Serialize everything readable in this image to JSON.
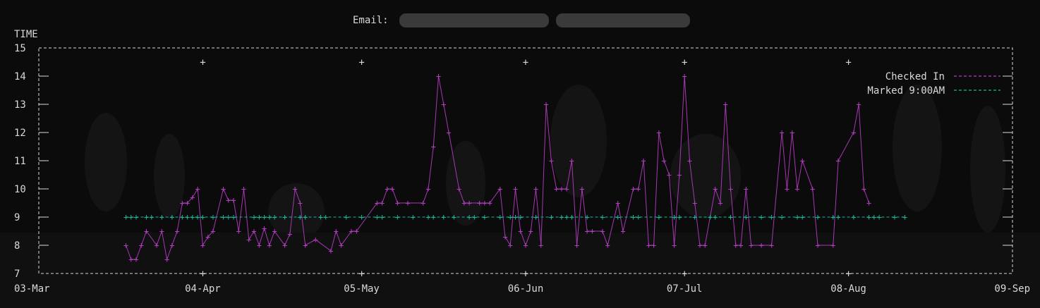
{
  "header": {
    "email_label": "Email:"
  },
  "chart_data": {
    "type": "scatter",
    "ylabel": "TIME",
    "ylim": [
      7,
      15
    ],
    "yticks": [
      7,
      8,
      9,
      10,
      11,
      12,
      13,
      14,
      15
    ],
    "ytick_labels": [
      "7",
      "8",
      "9",
      "10",
      "11",
      "12",
      "13",
      "14",
      "15"
    ],
    "xlim": [
      "2024-03-03",
      "2024-09-09"
    ],
    "xticks": [
      "2024-03-03",
      "2024-04-04",
      "2024-05-05",
      "2024-06-06",
      "2024-07-07",
      "2024-08-08",
      "2024-09-09"
    ],
    "xtick_labels": [
      "03-Mar",
      "04-Apr",
      "05-May",
      "06-Jun",
      "07-Jul",
      "08-Aug",
      "09-Sep"
    ],
    "grid": false,
    "legend": {
      "position": "top-right"
    },
    "colors": {
      "checked_in": "#b83cc8",
      "marked": "#14b89a",
      "axis": "#d9d9d9",
      "background": "#0b0b0b"
    },
    "series": [
      {
        "name": "Checked In",
        "color": "#b83cc8",
        "points": [
          [
            "2024-03-20",
            8.0
          ],
          [
            "2024-03-21",
            7.5
          ],
          [
            "2024-03-22",
            7.5
          ],
          [
            "2024-03-23",
            8.0
          ],
          [
            "2024-03-24",
            8.5
          ],
          [
            "2024-03-26",
            8.0
          ],
          [
            "2024-03-27",
            8.5
          ],
          [
            "2024-03-28",
            7.5
          ],
          [
            "2024-03-29",
            8.0
          ],
          [
            "2024-03-30",
            8.5
          ],
          [
            "2024-03-31",
            9.5
          ],
          [
            "2024-04-01",
            9.5
          ],
          [
            "2024-04-02",
            9.7
          ],
          [
            "2024-04-03",
            10.0
          ],
          [
            "2024-04-04",
            8.0
          ],
          [
            "2024-04-05",
            8.3
          ],
          [
            "2024-04-06",
            8.5
          ],
          [
            "2024-04-08",
            10.0
          ],
          [
            "2024-04-09",
            9.6
          ],
          [
            "2024-04-10",
            9.6
          ],
          [
            "2024-04-11",
            8.5
          ],
          [
            "2024-04-12",
            10.0
          ],
          [
            "2024-04-13",
            8.2
          ],
          [
            "2024-04-14",
            8.5
          ],
          [
            "2024-04-15",
            8.0
          ],
          [
            "2024-04-16",
            8.6
          ],
          [
            "2024-04-17",
            8.0
          ],
          [
            "2024-04-18",
            8.5
          ],
          [
            "2024-04-20",
            8.0
          ],
          [
            "2024-04-21",
            8.4
          ],
          [
            "2024-04-22",
            10.0
          ],
          [
            "2024-04-23",
            9.5
          ],
          [
            "2024-04-24",
            8.0
          ],
          [
            "2024-04-26",
            8.2
          ],
          [
            "2024-04-29",
            7.8
          ],
          [
            "2024-04-30",
            8.5
          ],
          [
            "2024-05-01",
            8.0
          ],
          [
            "2024-05-03",
            8.5
          ],
          [
            "2024-05-04",
            8.5
          ],
          [
            "2024-05-08",
            9.5
          ],
          [
            "2024-05-09",
            9.5
          ],
          [
            "2024-05-10",
            10.0
          ],
          [
            "2024-05-11",
            10.0
          ],
          [
            "2024-05-12",
            9.5
          ],
          [
            "2024-05-14",
            9.5
          ],
          [
            "2024-05-17",
            9.5
          ],
          [
            "2024-05-18",
            10.0
          ],
          [
            "2024-05-19",
            11.5
          ],
          [
            "2024-05-20",
            14.0
          ],
          [
            "2024-05-21",
            13.0
          ],
          [
            "2024-05-22",
            12.0
          ],
          [
            "2024-05-24",
            10.0
          ],
          [
            "2024-05-25",
            9.5
          ],
          [
            "2024-05-26",
            9.5
          ],
          [
            "2024-05-28",
            9.5
          ],
          [
            "2024-05-29",
            9.5
          ],
          [
            "2024-05-30",
            9.5
          ],
          [
            "2024-06-01",
            10.0
          ],
          [
            "2024-06-02",
            8.3
          ],
          [
            "2024-06-03",
            8.0
          ],
          [
            "2024-06-04",
            10.0
          ],
          [
            "2024-06-05",
            8.5
          ],
          [
            "2024-06-06",
            8.0
          ],
          [
            "2024-06-07",
            8.5
          ],
          [
            "2024-06-08",
            10.0
          ],
          [
            "2024-06-09",
            8.0
          ],
          [
            "2024-06-10",
            13.0
          ],
          [
            "2024-06-11",
            11.0
          ],
          [
            "2024-06-12",
            10.0
          ],
          [
            "2024-06-13",
            10.0
          ],
          [
            "2024-06-14",
            10.0
          ],
          [
            "2024-06-15",
            11.0
          ],
          [
            "2024-06-16",
            8.0
          ],
          [
            "2024-06-17",
            10.0
          ],
          [
            "2024-06-18",
            8.5
          ],
          [
            "2024-06-19",
            8.5
          ],
          [
            "2024-06-21",
            8.5
          ],
          [
            "2024-06-22",
            8.0
          ],
          [
            "2024-06-24",
            9.5
          ],
          [
            "2024-06-25",
            8.5
          ],
          [
            "2024-06-27",
            10.0
          ],
          [
            "2024-06-28",
            10.0
          ],
          [
            "2024-06-29",
            11.0
          ],
          [
            "2024-06-30",
            8.0
          ],
          [
            "2024-07-01",
            8.0
          ],
          [
            "2024-07-02",
            12.0
          ],
          [
            "2024-07-03",
            11.0
          ],
          [
            "2024-07-04",
            10.5
          ],
          [
            "2024-07-05",
            8.0
          ],
          [
            "2024-07-06",
            10.5
          ],
          [
            "2024-07-07",
            14.0
          ],
          [
            "2024-07-08",
            11.0
          ],
          [
            "2024-07-09",
            9.5
          ],
          [
            "2024-07-10",
            8.0
          ],
          [
            "2024-07-11",
            8.0
          ],
          [
            "2024-07-13",
            10.0
          ],
          [
            "2024-07-14",
            9.5
          ],
          [
            "2024-07-15",
            13.0
          ],
          [
            "2024-07-16",
            10.0
          ],
          [
            "2024-07-17",
            8.0
          ],
          [
            "2024-07-18",
            8.0
          ],
          [
            "2024-07-19",
            10.0
          ],
          [
            "2024-07-20",
            8.0
          ],
          [
            "2024-07-22",
            8.0
          ],
          [
            "2024-07-24",
            8.0
          ],
          [
            "2024-07-26",
            12.0
          ],
          [
            "2024-07-27",
            10.0
          ],
          [
            "2024-07-28",
            12.0
          ],
          [
            "2024-07-29",
            10.0
          ],
          [
            "2024-07-30",
            11.0
          ],
          [
            "2024-08-01",
            10.0
          ],
          [
            "2024-08-02",
            8.0
          ],
          [
            "2024-08-05",
            8.0
          ],
          [
            "2024-08-06",
            11.0
          ],
          [
            "2024-08-09",
            12.0
          ],
          [
            "2024-08-10",
            13.0
          ],
          [
            "2024-08-11",
            10.0
          ],
          [
            "2024-08-12",
            9.5
          ]
        ]
      },
      {
        "name": "Marked 9:00AM",
        "color": "#14b89a",
        "points": [
          [
            "2024-03-20",
            9.0
          ],
          [
            "2024-03-21",
            9.0
          ],
          [
            "2024-03-22",
            9.0
          ],
          [
            "2024-03-24",
            9.0
          ],
          [
            "2024-03-25",
            9.0
          ],
          [
            "2024-03-27",
            9.0
          ],
          [
            "2024-03-29",
            9.0
          ],
          [
            "2024-03-31",
            9.0
          ],
          [
            "2024-04-01",
            9.0
          ],
          [
            "2024-04-02",
            9.0
          ],
          [
            "2024-04-03",
            9.0
          ],
          [
            "2024-04-04",
            9.0
          ],
          [
            "2024-04-06",
            9.0
          ],
          [
            "2024-04-08",
            9.0
          ],
          [
            "2024-04-09",
            9.0
          ],
          [
            "2024-04-10",
            9.0
          ],
          [
            "2024-04-14",
            9.0
          ],
          [
            "2024-04-15",
            9.0
          ],
          [
            "2024-04-16",
            9.0
          ],
          [
            "2024-04-17",
            9.0
          ],
          [
            "2024-04-18",
            9.0
          ],
          [
            "2024-04-20",
            9.0
          ],
          [
            "2024-04-23",
            9.0
          ],
          [
            "2024-04-24",
            9.0
          ],
          [
            "2024-04-27",
            9.0
          ],
          [
            "2024-04-28",
            9.0
          ],
          [
            "2024-05-02",
            9.0
          ],
          [
            "2024-05-05",
            9.0
          ],
          [
            "2024-05-08",
            9.0
          ],
          [
            "2024-05-09",
            9.0
          ],
          [
            "2024-05-12",
            9.0
          ],
          [
            "2024-05-15",
            9.0
          ],
          [
            "2024-05-18",
            9.0
          ],
          [
            "2024-05-19",
            9.0
          ],
          [
            "2024-05-21",
            9.0
          ],
          [
            "2024-05-23",
            9.0
          ],
          [
            "2024-05-26",
            9.0
          ],
          [
            "2024-05-27",
            9.0
          ],
          [
            "2024-05-29",
            9.0
          ],
          [
            "2024-06-01",
            9.0
          ],
          [
            "2024-06-03",
            9.0
          ],
          [
            "2024-06-04",
            9.0
          ],
          [
            "2024-06-05",
            9.0
          ],
          [
            "2024-06-08",
            9.0
          ],
          [
            "2024-06-11",
            9.0
          ],
          [
            "2024-06-13",
            9.0
          ],
          [
            "2024-06-14",
            9.0
          ],
          [
            "2024-06-15",
            9.0
          ],
          [
            "2024-06-18",
            9.0
          ],
          [
            "2024-06-21",
            9.0
          ],
          [
            "2024-06-24",
            9.0
          ],
          [
            "2024-06-27",
            9.0
          ],
          [
            "2024-06-28",
            9.0
          ],
          [
            "2024-07-02",
            9.0
          ],
          [
            "2024-07-05",
            9.0
          ],
          [
            "2024-07-06",
            9.0
          ],
          [
            "2024-07-09",
            9.0
          ],
          [
            "2024-07-12",
            9.0
          ],
          [
            "2024-07-13",
            9.0
          ],
          [
            "2024-07-16",
            9.0
          ],
          [
            "2024-07-19",
            9.0
          ],
          [
            "2024-07-22",
            9.0
          ],
          [
            "2024-07-24",
            9.0
          ],
          [
            "2024-07-26",
            9.0
          ],
          [
            "2024-07-29",
            9.0
          ],
          [
            "2024-07-30",
            9.0
          ],
          [
            "2024-08-02",
            9.0
          ],
          [
            "2024-08-05",
            9.0
          ],
          [
            "2024-08-06",
            9.0
          ],
          [
            "2024-08-09",
            9.0
          ],
          [
            "2024-08-12",
            9.0
          ],
          [
            "2024-08-13",
            9.0
          ],
          [
            "2024-08-14",
            9.0
          ],
          [
            "2024-08-17",
            9.0
          ],
          [
            "2024-08-19",
            9.0
          ]
        ]
      }
    ]
  }
}
